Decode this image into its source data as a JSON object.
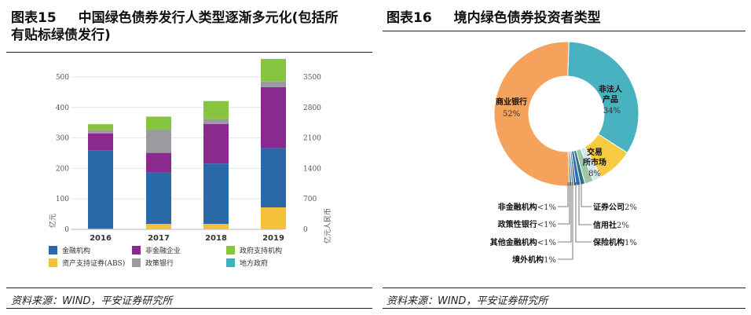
{
  "left": {
    "figure_no": "图表15",
    "title_line1": "中国绿色债券发行人类型逐渐多元化(包括所",
    "title_line2": "有贴标绿债发行)",
    "source": "资料来源：WIND，平安证券研究所"
  },
  "right": {
    "figure_no": "图表16",
    "title": "境内绿色债券投资者类型",
    "source": "资料来源：WIND，平安证券研究所"
  },
  "colors": {
    "金融机构": "#2a6aa8",
    "非金融企业": "#8b2a8e",
    "政府支持机构": "#87c540",
    "资产支持证券(ABS)": "#f5c03a",
    "政策银行": "#9a9aa0",
    "地方政府": "#3db3bd"
  },
  "chart_data": [
    {
      "type": "bar",
      "stacked": true,
      "categories": [
        "2016",
        "2017",
        "2018",
        "2019"
      ],
      "series": [
        {
          "name": "资产支持证券(ABS)",
          "values": [
            2,
            18,
            18,
            72
          ]
        },
        {
          "name": "金融机构",
          "values": [
            258,
            168,
            198,
            195
          ]
        },
        {
          "name": "非金融企业",
          "values": [
            55,
            65,
            130,
            200
          ]
        },
        {
          "name": "政策银行",
          "values": [
            12,
            75,
            15,
            18
          ]
        },
        {
          "name": "政府支持机构",
          "values": [
            18,
            44,
            60,
            72
          ]
        },
        {
          "name": "地方政府",
          "values": [
            0,
            0,
            0,
            2
          ]
        }
      ],
      "ylabel": "亿元",
      "ylim": [
        0,
        500
      ],
      "yticks": [
        0,
        100,
        200,
        300,
        400,
        500
      ],
      "ylabel_right": "亿元人民币",
      "ylim_right": [
        0,
        3500
      ],
      "yticks_right": [
        0,
        700,
        1400,
        2100,
        2800,
        3500
      ],
      "legend": [
        "金融机构",
        "非金融企业",
        "政府支持机构",
        "资产支持证券(ABS)",
        "政策银行",
        "地方政府"
      ]
    },
    {
      "type": "pie",
      "donut": true,
      "slices": [
        {
          "name": "非法人产品",
          "value": 34,
          "label": "34%",
          "color": "#48b2c1"
        },
        {
          "name": "交易所市场",
          "value": 8,
          "label": "8%",
          "color": "#f6ca42"
        },
        {
          "name": "证券公司",
          "value": 2,
          "label": "2%",
          "color": "#cfe8f0"
        },
        {
          "name": "信用社",
          "value": 2,
          "label": "2%",
          "color": "#9dc7a5"
        },
        {
          "name": "保险机构",
          "value": 1,
          "label": "1%",
          "color": "#2e6f86"
        },
        {
          "name": "境外机构",
          "value": 1,
          "label": "1%",
          "color": "#2f6fb0"
        },
        {
          "name": "其他金融机构",
          "value": 0.5,
          "label": "<1%",
          "color": "#1d3f73"
        },
        {
          "name": "政策性银行",
          "value": 0.5,
          "label": "<1%",
          "color": "#3f8f9c"
        },
        {
          "name": "非金融机构",
          "value": 0.5,
          "label": "<1%",
          "color": "#6f6f6f"
        },
        {
          "name": "商业银行",
          "value": 52,
          "label": "52%",
          "color": "#f5a25c"
        }
      ],
      "inner_labels": {
        "non_legal_line1": "非法人",
        "non_legal_line2": "产品",
        "exchange_line1": "交易",
        "exchange_line2": "所市场",
        "commercial": "商业银行"
      }
    }
  ]
}
